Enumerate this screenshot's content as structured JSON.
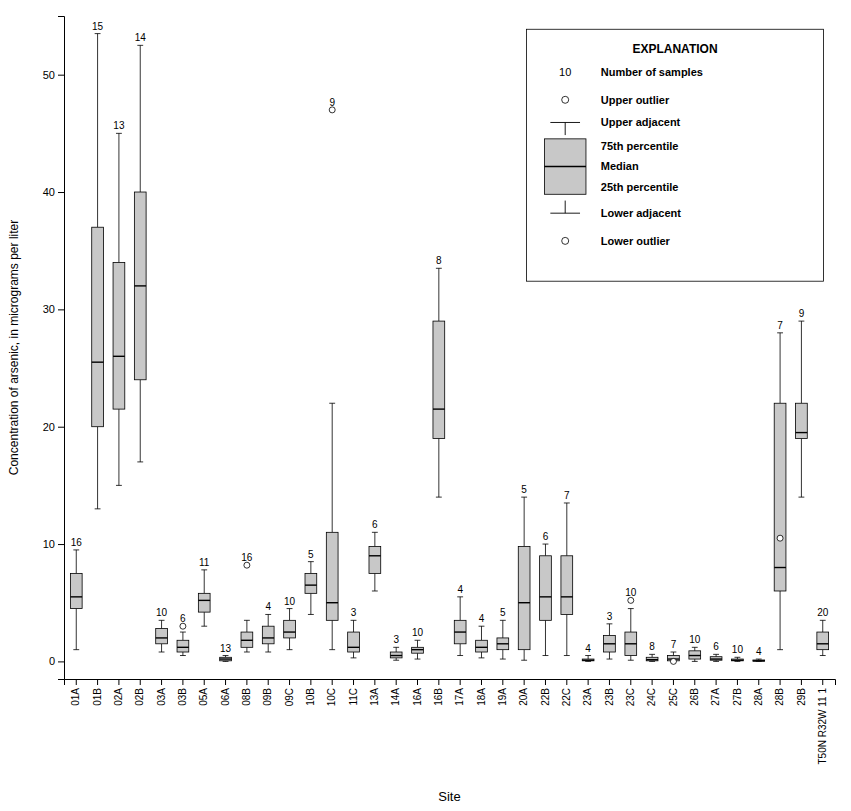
{
  "chart_data": {
    "type": "box",
    "xlabel": "Site",
    "ylabel": "Concentration of arsenic, in micrograms per liter",
    "categories": [
      "01A",
      "01B",
      "02A",
      "02B",
      "03A",
      "03B",
      "05A",
      "06A",
      "08B",
      "09B",
      "09C",
      "10B",
      "10C",
      "11C",
      "13A",
      "14A",
      "16A",
      "16B",
      "17A",
      "18A",
      "19A",
      "20A",
      "22B",
      "22C",
      "23A",
      "23B",
      "23C",
      "24C",
      "25C",
      "26B",
      "27A",
      "27B",
      "28A",
      "28B",
      "29B",
      "T50N R32W 11 1"
    ],
    "n_samples": [
      16,
      15,
      13,
      14,
      10,
      6,
      11,
      13,
      16,
      4,
      10,
      5,
      9,
      3,
      6,
      3,
      10,
      8,
      4,
      4,
      5,
      5,
      6,
      7,
      4,
      3,
      10,
      8,
      7,
      10,
      6,
      10,
      4,
      7,
      9,
      20
    ],
    "boxes": [
      {
        "q1": 4.5,
        "median": 5.5,
        "q3": 7.5,
        "lower_adj": 1.0,
        "upper_adj": 9.5,
        "outliers_low": [],
        "outliers_high": []
      },
      {
        "q1": 20.0,
        "median": 25.5,
        "q3": 37.0,
        "lower_adj": 13.0,
        "upper_adj": 53.5,
        "outliers_low": [],
        "outliers_high": []
      },
      {
        "q1": 21.5,
        "median": 26.0,
        "q3": 34.0,
        "lower_adj": 15.0,
        "upper_adj": 45.0,
        "outliers_low": [],
        "outliers_high": []
      },
      {
        "q1": 24.0,
        "median": 32.0,
        "q3": 40.0,
        "lower_adj": 17.0,
        "upper_adj": 52.5,
        "outliers_low": [],
        "outliers_high": []
      },
      {
        "q1": 1.5,
        "median": 2.0,
        "q3": 2.8,
        "lower_adj": 0.8,
        "upper_adj": 3.5,
        "outliers_low": [],
        "outliers_high": []
      },
      {
        "q1": 0.8,
        "median": 1.2,
        "q3": 1.8,
        "lower_adj": 0.5,
        "upper_adj": 2.5,
        "outliers_low": [],
        "outliers_high": [
          3.0
        ]
      },
      {
        "q1": 4.2,
        "median": 5.2,
        "q3": 5.8,
        "lower_adj": 3.0,
        "upper_adj": 7.8,
        "outliers_low": [],
        "outliers_high": []
      },
      {
        "q1": 0.05,
        "median": 0.2,
        "q3": 0.35,
        "lower_adj": 0.0,
        "upper_adj": 0.5,
        "outliers_low": [],
        "outliers_high": []
      },
      {
        "q1": 1.2,
        "median": 1.8,
        "q3": 2.5,
        "lower_adj": 0.8,
        "upper_adj": 3.5,
        "outliers_low": [],
        "outliers_high": [
          8.2
        ]
      },
      {
        "q1": 1.5,
        "median": 2.0,
        "q3": 3.0,
        "lower_adj": 0.8,
        "upper_adj": 4.0,
        "outliers_low": [],
        "outliers_high": []
      },
      {
        "q1": 2.0,
        "median": 2.5,
        "q3": 3.5,
        "lower_adj": 1.0,
        "upper_adj": 4.5,
        "outliers_low": [],
        "outliers_high": []
      },
      {
        "q1": 5.8,
        "median": 6.5,
        "q3": 7.5,
        "lower_adj": 4.0,
        "upper_adj": 8.5,
        "outliers_low": [],
        "outliers_high": []
      },
      {
        "q1": 3.5,
        "median": 5.0,
        "q3": 11.0,
        "lower_adj": 1.0,
        "upper_adj": 22.0,
        "outliers_low": [],
        "outliers_high": [
          47.0
        ]
      },
      {
        "q1": 0.8,
        "median": 1.2,
        "q3": 2.5,
        "lower_adj": 0.3,
        "upper_adj": 3.5,
        "outliers_low": [],
        "outliers_high": []
      },
      {
        "q1": 7.5,
        "median": 9.0,
        "q3": 9.8,
        "lower_adj": 6.0,
        "upper_adj": 11.0,
        "outliers_low": [],
        "outliers_high": []
      },
      {
        "q1": 0.3,
        "median": 0.5,
        "q3": 0.8,
        "lower_adj": 0.1,
        "upper_adj": 1.2,
        "outliers_low": [],
        "outliers_high": []
      },
      {
        "q1": 0.7,
        "median": 1.0,
        "q3": 1.2,
        "lower_adj": 0.2,
        "upper_adj": 1.8,
        "outliers_low": [],
        "outliers_high": []
      },
      {
        "q1": 19.0,
        "median": 21.5,
        "q3": 29.0,
        "lower_adj": 14.0,
        "upper_adj": 33.5,
        "outliers_low": [],
        "outliers_high": []
      },
      {
        "q1": 1.5,
        "median": 2.5,
        "q3": 3.5,
        "lower_adj": 0.5,
        "upper_adj": 5.5,
        "outliers_low": [],
        "outliers_high": []
      },
      {
        "q1": 0.8,
        "median": 1.2,
        "q3": 1.8,
        "lower_adj": 0.3,
        "upper_adj": 3.0,
        "outliers_low": [],
        "outliers_high": []
      },
      {
        "q1": 1.0,
        "median": 1.5,
        "q3": 2.0,
        "lower_adj": 0.2,
        "upper_adj": 3.5,
        "outliers_low": [],
        "outliers_high": []
      },
      {
        "q1": 1.0,
        "median": 5.0,
        "q3": 9.8,
        "lower_adj": 0.1,
        "upper_adj": 14.0,
        "outliers_low": [],
        "outliers_high": []
      },
      {
        "q1": 3.5,
        "median": 5.5,
        "q3": 9.0,
        "lower_adj": 0.5,
        "upper_adj": 10.0,
        "outliers_low": [],
        "outliers_high": []
      },
      {
        "q1": 4.0,
        "median": 5.5,
        "q3": 9.0,
        "lower_adj": 0.5,
        "upper_adj": 13.5,
        "outliers_low": [],
        "outliers_high": []
      },
      {
        "q1": 0.05,
        "median": 0.1,
        "q3": 0.2,
        "lower_adj": 0.0,
        "upper_adj": 0.5,
        "outliers_low": [],
        "outliers_high": []
      },
      {
        "q1": 0.8,
        "median": 1.5,
        "q3": 2.2,
        "lower_adj": 0.2,
        "upper_adj": 3.2,
        "outliers_low": [],
        "outliers_high": []
      },
      {
        "q1": 0.5,
        "median": 1.5,
        "q3": 2.5,
        "lower_adj": 0.1,
        "upper_adj": 4.5,
        "outliers_low": [],
        "outliers_high": [
          5.2
        ]
      },
      {
        "q1": 0.05,
        "median": 0.15,
        "q3": 0.35,
        "lower_adj": 0.0,
        "upper_adj": 0.6,
        "outliers_low": [],
        "outliers_high": []
      },
      {
        "q1": 0.05,
        "median": 0.2,
        "q3": 0.5,
        "lower_adj": 0.0,
        "upper_adj": 0.8,
        "outliers_low": [
          0.0
        ],
        "outliers_high": []
      },
      {
        "q1": 0.2,
        "median": 0.5,
        "q3": 0.9,
        "lower_adj": 0.0,
        "upper_adj": 1.2,
        "outliers_low": [],
        "outliers_high": []
      },
      {
        "q1": 0.1,
        "median": 0.2,
        "q3": 0.4,
        "lower_adj": 0.0,
        "upper_adj": 0.6,
        "outliers_low": [],
        "outliers_high": []
      },
      {
        "q1": 0.05,
        "median": 0.1,
        "q3": 0.2,
        "lower_adj": 0.0,
        "upper_adj": 0.35,
        "outliers_low": [],
        "outliers_high": []
      },
      {
        "q1": 0.02,
        "median": 0.05,
        "q3": 0.12,
        "lower_adj": 0.0,
        "upper_adj": 0.2,
        "outliers_low": [],
        "outliers_high": []
      },
      {
        "q1": 6.0,
        "median": 8.0,
        "q3": 22.0,
        "lower_adj": 1.0,
        "upper_adj": 28.0,
        "outliers_low": [],
        "outliers_high": [
          10.5
        ]
      },
      {
        "q1": 19.0,
        "median": 19.5,
        "q3": 22.0,
        "lower_adj": 14.0,
        "upper_adj": 29.0,
        "outliers_low": [],
        "outliers_high": []
      },
      {
        "q1": 1.0,
        "median": 1.5,
        "q3": 2.5,
        "lower_adj": 0.5,
        "upper_adj": 3.5,
        "outliers_low": [],
        "outliers_high": []
      }
    ],
    "ylim": [
      -1.5,
      55
    ],
    "yticks": [
      0,
      10,
      20,
      30,
      40,
      50
    ],
    "color": "#c8c8c8",
    "legend": "upper right",
    "legend_title": "EXPLANATION",
    "legend_sample_label": 10,
    "legend_entries": [
      {
        "label": "Number of samples",
        "marker": "count"
      },
      {
        "label": "Upper outlier",
        "marker": "circle"
      },
      {
        "label": "Upper adjacent",
        "marker": "cap_top"
      },
      {
        "label": "75th percentile",
        "marker": "box_top"
      },
      {
        "label": "Median",
        "marker": "box_median"
      },
      {
        "label": "25th percentile",
        "marker": "box_bottom"
      },
      {
        "label": "Lower adjacent",
        "marker": "cap_bottom"
      },
      {
        "label": "Lower outlier",
        "marker": "circle"
      }
    ]
  }
}
